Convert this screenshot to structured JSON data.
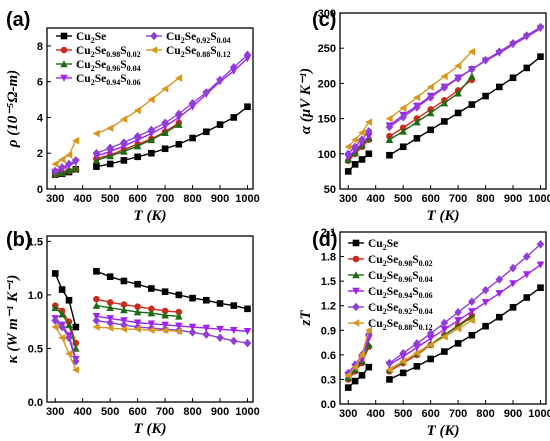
{
  "colors": {
    "Cu2Se": "#000000",
    "Cu2Se0.98S0.02": "#cc2b1d",
    "Cu2Se0.96S0.04": "#1f6b14",
    "Cu2Se0.94S0.06": "#a020f0",
    "Cu2Se0.92S0.04": "#8f3fd6",
    "Cu2Se0.88S0.12": "#d6981f"
  },
  "chart_data": [
    {
      "panel": "(a)",
      "type": "line",
      "xlabel": "T (K)",
      "ylabel": "ρ (10⁻⁵Ω-m)",
      "xlim": [
        270,
        1020
      ],
      "ylim": [
        0,
        9
      ],
      "xticks": [
        "300",
        "400",
        "500",
        "600",
        "700",
        "800",
        "900",
        "1000"
      ],
      "yticks": [
        "0",
        "2",
        "4",
        "6",
        "8"
      ],
      "legend_position": "top-left",
      "series": [
        {
          "name": "Cu2Se",
          "marker": "square",
          "x": [
            300,
            325,
            350,
            375,
            450,
            500,
            550,
            600,
            650,
            700,
            750,
            800,
            850,
            900,
            950,
            1000
          ],
          "y": [
            0.8,
            0.85,
            0.95,
            1.1,
            1.25,
            1.4,
            1.6,
            1.8,
            2.0,
            2.25,
            2.5,
            2.85,
            3.2,
            3.6,
            4.0,
            4.6
          ]
        },
        {
          "name": "Cu2Se0.98S0.02",
          "marker": "circle",
          "x": [
            300,
            325,
            350,
            375,
            450,
            500,
            550,
            600,
            650,
            700,
            750
          ],
          "y": [
            0.8,
            0.9,
            1.0,
            1.1,
            1.7,
            1.9,
            2.2,
            2.5,
            2.8,
            3.2,
            3.7
          ]
        },
        {
          "name": "Cu2Se0.96S0.04",
          "marker": "triangle-up",
          "x": [
            300,
            325,
            350,
            375,
            450,
            500,
            550,
            600,
            650,
            700,
            750
          ],
          "y": [
            0.85,
            0.9,
            1.05,
            1.15,
            1.6,
            1.85,
            2.1,
            2.4,
            2.75,
            3.15,
            3.6
          ]
        },
        {
          "name": "Cu2Se0.94S0.06",
          "marker": "triangle-down",
          "x": [
            300,
            325,
            350,
            375,
            450,
            500,
            550,
            600,
            650,
            700,
            750,
            800,
            850,
            900,
            950,
            1000
          ],
          "y": [
            0.95,
            1.1,
            1.3,
            1.5,
            1.85,
            2.1,
            2.4,
            2.75,
            3.1,
            3.5,
            4.0,
            4.6,
            5.3,
            6.0,
            6.6,
            7.3
          ]
        },
        {
          "name": "Cu2Se0.92S0.04",
          "marker": "diamond",
          "x": [
            300,
            325,
            350,
            375,
            450,
            500,
            550,
            600,
            650,
            700,
            750,
            800,
            850,
            900,
            950,
            1000
          ],
          "y": [
            1.0,
            1.2,
            1.4,
            1.6,
            2.0,
            2.3,
            2.6,
            2.95,
            3.3,
            3.7,
            4.2,
            4.8,
            5.4,
            6.1,
            6.8,
            7.5
          ]
        },
        {
          "name": "Cu2Se0.88S0.12",
          "marker": "triangle-left",
          "x": [
            300,
            325,
            350,
            375,
            450,
            500,
            550,
            600,
            650,
            700,
            750
          ],
          "y": [
            1.4,
            1.65,
            1.9,
            2.7,
            3.1,
            3.4,
            3.9,
            4.4,
            5.0,
            5.6,
            6.2
          ]
        }
      ]
    },
    {
      "panel": "(b)",
      "type": "line",
      "xlabel": "T (K)",
      "ylabel": "κ (W m⁻¹ K⁻¹)",
      "xlim": [
        270,
        1020
      ],
      "ylim": [
        0,
        1.55
      ],
      "xticks": [
        "300",
        "400",
        "500",
        "600",
        "700",
        "800",
        "900",
        "1000"
      ],
      "yticks": [
        "0.0",
        "0.5",
        "1.0",
        "1.5"
      ],
      "series": [
        {
          "name": "Cu2Se",
          "marker": "square",
          "x": [
            300,
            325,
            350,
            375,
            450,
            500,
            550,
            600,
            650,
            700,
            750,
            800,
            850,
            900,
            950,
            1000
          ],
          "y": [
            1.2,
            1.05,
            0.95,
            0.7,
            1.22,
            1.17,
            1.13,
            1.1,
            1.06,
            1.03,
            1.0,
            0.97,
            0.95,
            0.92,
            0.9,
            0.87
          ]
        },
        {
          "name": "Cu2Se0.98S0.02",
          "marker": "circle",
          "x": [
            300,
            325,
            350,
            375,
            450,
            500,
            550,
            600,
            650,
            700,
            750
          ],
          "y": [
            0.9,
            0.85,
            0.75,
            0.55,
            0.96,
            0.93,
            0.91,
            0.89,
            0.87,
            0.85,
            0.84
          ]
        },
        {
          "name": "Cu2Se0.96S0.04",
          "marker": "triangle-up",
          "x": [
            300,
            325,
            350,
            375,
            450,
            500,
            550,
            600,
            650,
            700,
            750
          ],
          "y": [
            0.88,
            0.82,
            0.72,
            0.5,
            0.9,
            0.88,
            0.86,
            0.84,
            0.83,
            0.81,
            0.8
          ]
        },
        {
          "name": "Cu2Se0.94S0.06",
          "marker": "triangle-down",
          "x": [
            300,
            325,
            350,
            375,
            450,
            500,
            550,
            600,
            650,
            700,
            750,
            800,
            850,
            900,
            950,
            1000
          ],
          "y": [
            0.78,
            0.72,
            0.62,
            0.4,
            0.8,
            0.78,
            0.76,
            0.74,
            0.73,
            0.72,
            0.71,
            0.7,
            0.69,
            0.68,
            0.67,
            0.66
          ]
        },
        {
          "name": "Cu2Se0.92S0.04",
          "marker": "diamond",
          "x": [
            300,
            325,
            350,
            375,
            450,
            500,
            550,
            600,
            650,
            700,
            750,
            800,
            850,
            900,
            950,
            1000
          ],
          "y": [
            0.76,
            0.7,
            0.6,
            0.38,
            0.76,
            0.74,
            0.72,
            0.7,
            0.69,
            0.68,
            0.67,
            0.65,
            0.63,
            0.6,
            0.57,
            0.55
          ]
        },
        {
          "name": "Cu2Se0.88S0.12",
          "marker": "triangle-left",
          "x": [
            300,
            325,
            350,
            375,
            450,
            500,
            550,
            600,
            650,
            700,
            750
          ],
          "y": [
            0.7,
            0.6,
            0.45,
            0.3,
            0.7,
            0.69,
            0.68,
            0.68,
            0.67,
            0.67,
            0.66
          ]
        }
      ]
    },
    {
      "panel": "(c)",
      "type": "line",
      "xlabel": "T (K)",
      "ylabel": "α (μV K⁻¹)",
      "xlim": [
        270,
        1020
      ],
      "ylim": [
        50,
        300
      ],
      "xticks": [
        "300",
        "400",
        "500",
        "600",
        "700",
        "800",
        "900",
        "1000"
      ],
      "yticks": [
        "50",
        "100",
        "150",
        "200",
        "250",
        "300"
      ],
      "series": [
        {
          "name": "Cu2Se",
          "marker": "square",
          "x": [
            300,
            325,
            350,
            375,
            450,
            500,
            550,
            600,
            650,
            700,
            750,
            800,
            850,
            900,
            950,
            1000
          ],
          "y": [
            75,
            85,
            92,
            100,
            98,
            110,
            122,
            134,
            146,
            158,
            170,
            182,
            195,
            208,
            222,
            238
          ]
        },
        {
          "name": "Cu2Se0.98S0.02",
          "marker": "circle",
          "x": [
            300,
            325,
            350,
            375,
            450,
            500,
            550,
            600,
            650,
            700,
            750
          ],
          "y": [
            90,
            100,
            110,
            120,
            125,
            137,
            150,
            163,
            176,
            190,
            205
          ]
        },
        {
          "name": "Cu2Se0.96S0.04",
          "marker": "triangle-up",
          "x": [
            300,
            325,
            350,
            375,
            450,
            500,
            550,
            600,
            650,
            700,
            750
          ],
          "y": [
            92,
            102,
            112,
            122,
            120,
            132,
            145,
            158,
            172,
            186,
            210
          ]
        },
        {
          "name": "Cu2Se0.94S0.06",
          "marker": "triangle-down",
          "x": [
            300,
            325,
            350,
            375,
            450,
            500,
            550,
            600,
            650,
            700,
            750,
            800,
            850,
            900,
            950,
            1000
          ],
          "y": [
            95,
            105,
            115,
            125,
            140,
            155,
            168,
            182,
            195,
            208,
            220,
            232,
            243,
            255,
            266,
            278
          ]
        },
        {
          "name": "Cu2Se0.92S0.04",
          "marker": "diamond",
          "x": [
            300,
            325,
            350,
            375,
            450,
            500,
            550,
            600,
            650,
            700,
            750,
            800,
            850,
            900,
            950,
            1000
          ],
          "y": [
            100,
            110,
            120,
            132,
            138,
            152,
            166,
            180,
            194,
            207,
            220,
            233,
            245,
            257,
            268,
            280
          ]
        },
        {
          "name": "Cu2Se0.88S0.12",
          "marker": "triangle-left",
          "x": [
            300,
            325,
            350,
            375,
            450,
            500,
            550,
            600,
            650,
            700,
            750
          ],
          "y": [
            110,
            120,
            130,
            145,
            150,
            165,
            180,
            195,
            210,
            225,
            245
          ]
        }
      ]
    },
    {
      "panel": "(d)",
      "type": "line",
      "xlabel": "T (K)",
      "ylabel": "zT",
      "xlim": [
        270,
        1020
      ],
      "ylim": [
        0,
        2.1
      ],
      "xticks": [
        "300",
        "400",
        "500",
        "600",
        "700",
        "800",
        "900",
        "1000"
      ],
      "yticks": [
        "0.0",
        "0.3",
        "0.6",
        "0.9",
        "1.2",
        "1.5",
        "1.8",
        "2.1"
      ],
      "legend_position": "top-left",
      "series": [
        {
          "name": "Cu2Se",
          "marker": "square",
          "x": [
            300,
            325,
            350,
            375,
            450,
            500,
            550,
            600,
            650,
            700,
            750,
            800,
            850,
            900,
            950,
            1000
          ],
          "y": [
            0.2,
            0.28,
            0.35,
            0.45,
            0.3,
            0.38,
            0.46,
            0.55,
            0.64,
            0.74,
            0.84,
            0.95,
            1.06,
            1.18,
            1.3,
            1.42
          ]
        },
        {
          "name": "Cu2Se0.98S0.02",
          "marker": "circle",
          "x": [
            300,
            325,
            350,
            375,
            450,
            500,
            550,
            600,
            650,
            700,
            750
          ],
          "y": [
            0.3,
            0.4,
            0.5,
            0.7,
            0.4,
            0.5,
            0.6,
            0.72,
            0.84,
            0.96,
            1.08
          ]
        },
        {
          "name": "Cu2Se0.96S0.04",
          "marker": "triangle-up",
          "x": [
            300,
            325,
            350,
            375,
            450,
            500,
            550,
            600,
            650,
            700,
            750
          ],
          "y": [
            0.32,
            0.42,
            0.52,
            0.72,
            0.42,
            0.52,
            0.62,
            0.73,
            0.84,
            0.95,
            1.06
          ]
        },
        {
          "name": "Cu2Se0.94S0.06",
          "marker": "triangle-down",
          "x": [
            300,
            325,
            350,
            375,
            450,
            500,
            550,
            600,
            650,
            700,
            750,
            800,
            850,
            900,
            950,
            1000
          ],
          "y": [
            0.35,
            0.45,
            0.55,
            0.8,
            0.48,
            0.58,
            0.69,
            0.8,
            0.91,
            1.02,
            1.13,
            1.24,
            1.35,
            1.47,
            1.58,
            1.7
          ]
        },
        {
          "name": "Cu2Se0.92S0.04",
          "marker": "diamond",
          "x": [
            300,
            325,
            350,
            375,
            450,
            500,
            550,
            600,
            650,
            700,
            750,
            800,
            850,
            900,
            950,
            1000
          ],
          "y": [
            0.38,
            0.48,
            0.6,
            0.85,
            0.5,
            0.62,
            0.74,
            0.86,
            0.99,
            1.12,
            1.25,
            1.39,
            1.52,
            1.66,
            1.8,
            1.95
          ]
        },
        {
          "name": "Cu2Se0.88S0.12",
          "marker": "triangle-left",
          "x": [
            300,
            325,
            350,
            375,
            450,
            500,
            550,
            600,
            650,
            700,
            750
          ],
          "y": [
            0.35,
            0.45,
            0.6,
            0.9,
            0.42,
            0.52,
            0.62,
            0.72,
            0.82,
            0.92,
            1.02
          ]
        }
      ]
    }
  ],
  "legend_a": [
    {
      "key": "Cu2Se",
      "base": "Cu",
      "sub1": "2",
      "mid": "Se",
      "sub2": "",
      "mid2": "",
      "sub3": ""
    },
    {
      "key": "Cu2Se0.98S0.02",
      "base": "Cu",
      "sub1": "2",
      "mid": "Se",
      "sub2": "0.98",
      "mid2": "S",
      "sub3": "0.02"
    },
    {
      "key": "Cu2Se0.96S0.04",
      "base": "Cu",
      "sub1": "2",
      "mid": "Se",
      "sub2": "0.96",
      "mid2": "S",
      "sub3": "0.04"
    },
    {
      "key": "Cu2Se0.94S0.06",
      "base": "Cu",
      "sub1": "2",
      "mid": "Se",
      "sub2": "0.94",
      "mid2": "S",
      "sub3": "0.06"
    },
    {
      "key": "Cu2Se0.92S0.04",
      "base": "Cu",
      "sub1": "2",
      "mid": "Se",
      "sub2": "0.92",
      "mid2": "S",
      "sub3": "0.04"
    },
    {
      "key": "Cu2Se0.88S0.12",
      "base": "Cu",
      "sub1": "2",
      "mid": "Se",
      "sub2": "0.88",
      "mid2": "S",
      "sub3": "0.12"
    }
  ],
  "legend_d": [
    {
      "key": "Cu2Se",
      "base": "Cu",
      "sub1": "2",
      "mid": "Se",
      "sub2": "",
      "mid2": "",
      "sub3": ""
    },
    {
      "key": "Cu2Se0.98S0.02",
      "base": "Cu",
      "sub1": "2",
      "mid": "Se",
      "sub2": "0.98",
      "mid2": "S",
      "sub3": "0.02"
    },
    {
      "key": "Cu2Se0.96S0.04",
      "base": "Cu",
      "sub1": "2",
      "mid": "Se",
      "sub2": "0.96",
      "mid2": "S",
      "sub3": "0.04"
    },
    {
      "key": "Cu2Se0.94S0.06",
      "base": "Cu",
      "sub1": "2",
      "mid": "Se",
      "sub2": "0.94",
      "mid2": "S",
      "sub3": "0.06"
    },
    {
      "key": "Cu2Se0.92S0.04",
      "base": "Cu",
      "sub1": "2",
      "mid": "Se",
      "sub2": "0.92",
      "mid2": "S",
      "sub3": "0.04"
    },
    {
      "key": "Cu2Se0.88S0.12",
      "base": "Cu",
      "sub1": "2",
      "mid": "Se",
      "sub2": "0.88",
      "mid2": "S",
      "sub3": "0.12"
    }
  ]
}
